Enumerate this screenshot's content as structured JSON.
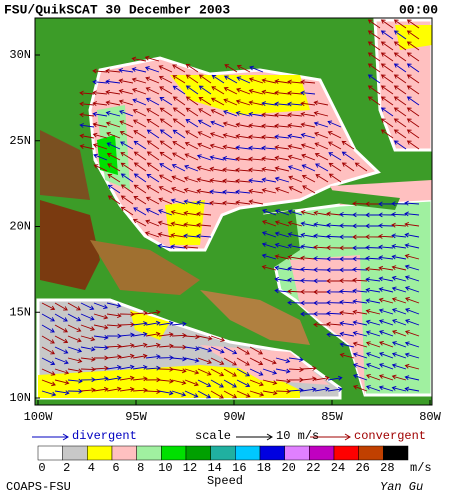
{
  "header": {
    "title": "FSU/QuikSCAT 30 December 2003",
    "time": "00:00"
  },
  "map": {
    "lat_labels": [
      "30N",
      "25N",
      "20N",
      "15N",
      "10N"
    ],
    "lon_labels": [
      "100W",
      "95W",
      "90W",
      "85W",
      "80W"
    ]
  },
  "legend": {
    "divergent": "divergent",
    "scale": "scale",
    "scale_value": "10 m/s",
    "convergent": "convergent"
  },
  "colorbar": {
    "ticks": [
      0,
      2,
      4,
      6,
      8,
      10,
      12,
      14,
      16,
      18,
      20,
      22,
      24,
      26,
      28
    ],
    "colors": [
      "#ffffff",
      "#c8c8c8",
      "#ffff00",
      "#ffc0c0",
      "#a0f0a0",
      "#00e000",
      "#00a000",
      "#20b0a0",
      "#00c8ff",
      "#0000e0",
      "#e080ff",
      "#c000c0",
      "#ff0000",
      "#c04000",
      "#000000"
    ],
    "unit": "m/s",
    "label": "Speed"
  },
  "footer": {
    "left": "COAPS-FSU",
    "right": "Yan Gu"
  }
}
